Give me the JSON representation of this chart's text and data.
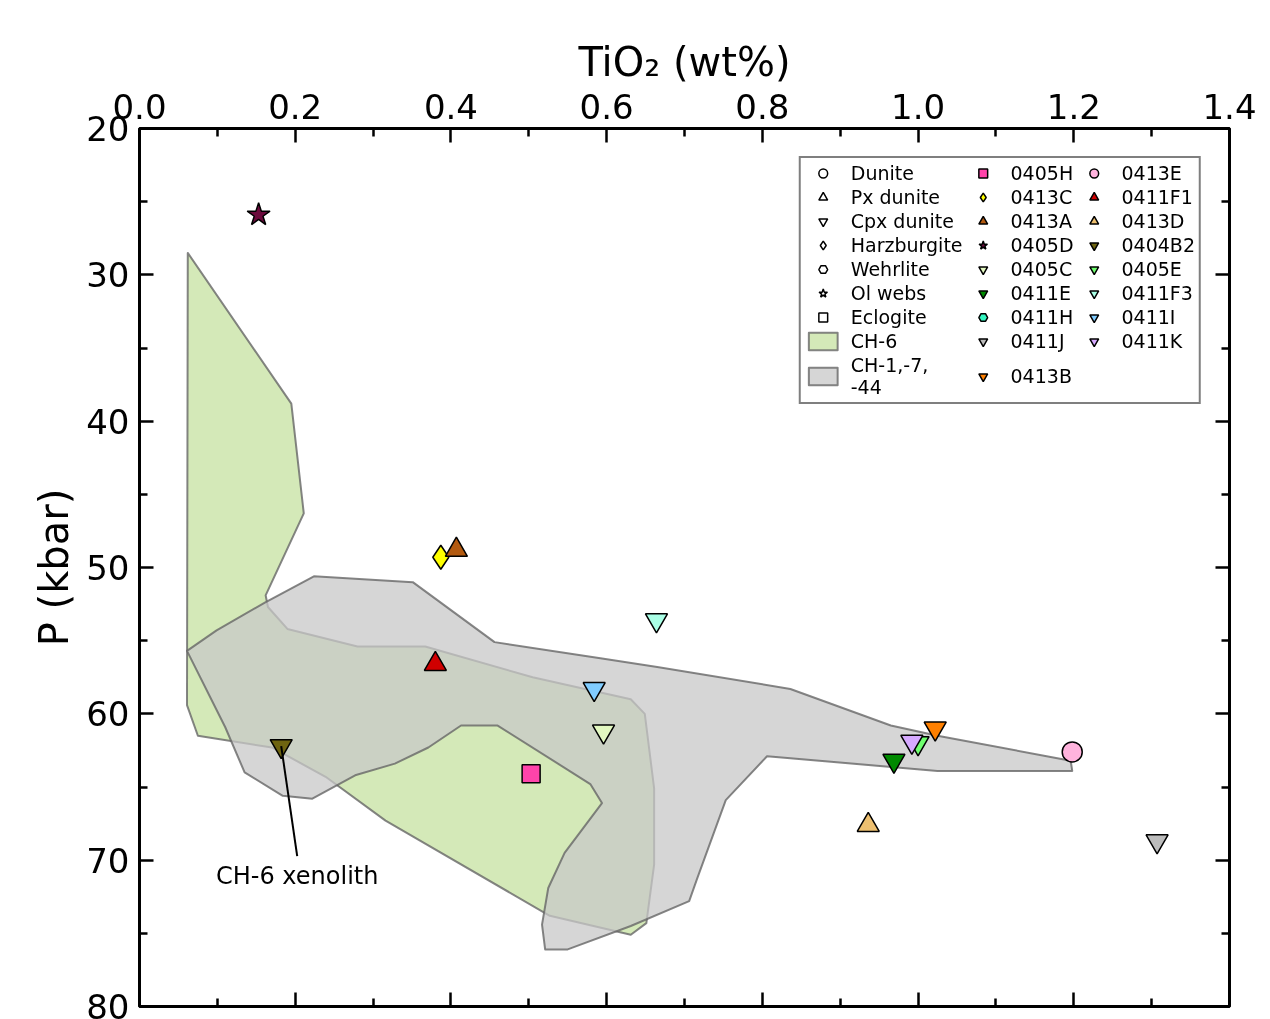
{
  "chart_data": {
    "type": "scatter",
    "xlabel": "TiO₂ (wt%)",
    "ylabel": "P (kbar)",
    "xlim": [
      0.0,
      1.4
    ],
    "ylim": [
      80,
      20
    ],
    "xticks": [
      {
        "value": 0,
        "label": "0.0"
      },
      0.2,
      0.4,
      0.6,
      0.8,
      {
        "value": 1,
        "label": "1.0"
      },
      1.2,
      1.4
    ],
    "yticks": [
      20,
      30,
      40,
      50,
      60,
      70,
      80
    ],
    "grid": false,
    "legend": "top right",
    "annotations": [
      {
        "text": "CH-6 xenolith",
        "x": 0.182,
        "y": 62.2
      }
    ],
    "series": [
      {
        "name": "Dunite",
        "marker": "circle"
      },
      {
        "name": "Px dunite",
        "marker": "triangle"
      },
      {
        "name": "Cpx dunite"
      },
      {
        "name": "Harzburgite",
        "marker": "diamond"
      },
      {
        "name": "Wehrlite",
        "marker": "hex"
      },
      {
        "name": "Ol webs",
        "marker": "star"
      },
      {
        "name": "Eclogite",
        "marker": "square"
      },
      {
        "name": "CH-6",
        "type": "area",
        "color": "#c5e2a0",
        "x": [
          0.062,
          0.195,
          0.211,
          0.162,
          0.165,
          0.19,
          0.28,
          0.367,
          0.505,
          0.631,
          0.649,
          0.661,
          0.661,
          0.651,
          0.631,
          0.527,
          0.316,
          0.239,
          0.17,
          0.075,
          0.061
        ],
        "values": [
          28.5,
          38.8,
          46.3,
          51.9,
          52.7,
          54.2,
          55.4,
          55.4,
          57.5,
          59.0,
          60.0,
          65.1,
          70.3,
          74.3,
          75.1,
          73.8,
          67.3,
          64.3,
          62.3,
          61.5,
          59.4
        ]
      },
      {
        "name": "CH-1,-7,\n-44",
        "type": "area",
        "color": "#c8c8c8",
        "x": [
          0.061,
          0.099,
          0.161,
          0.224,
          0.351,
          0.456,
          0.592,
          0.665,
          0.836,
          0.965,
          1.025,
          1.196,
          1.198,
          1.025,
          0.806,
          0.753,
          0.716,
          0.706,
          0.631,
          0.55,
          0.521,
          0.517,
          0.525,
          0.546,
          0.594,
          0.579,
          0.46,
          0.413,
          0.371,
          0.328,
          0.277,
          0.222,
          0.184,
          0.135,
          0.11
        ],
        "values": [
          55.7,
          54.3,
          52.4,
          50.6,
          51.0,
          55.1,
          56.2,
          56.8,
          58.3,
          60.8,
          61.5,
          63.2,
          63.9,
          63.9,
          62.9,
          65.9,
          71.3,
          72.8,
          74.5,
          76.1,
          76.1,
          74.4,
          71.9,
          69.5,
          66.1,
          64.8,
          60.8,
          60.8,
          62.3,
          63.4,
          64.2,
          65.8,
          65.6,
          64.0,
          60.9
        ]
      },
      {
        "name": "0405H",
        "marker": "square",
        "color": "#ff44aa",
        "x": [
          0.503
        ],
        "values": [
          64.1
        ]
      },
      {
        "name": "0413C",
        "marker": "diamond",
        "color": "#ffff00",
        "x": [
          0.387
        ],
        "values": [
          49.3
        ]
      },
      {
        "name": "0413A",
        "marker": "triangle",
        "color": "#b35a10",
        "x": [
          0.407
        ],
        "values": [
          48.8
        ]
      },
      {
        "name": "0405D",
        "marker": "star",
        "color": "#6b0a3c",
        "x": [
          0.153
        ],
        "values": [
          25.9
        ]
      },
      {
        "name": "0405C",
        "color": "#e2f8c0",
        "x": [
          0.596
        ],
        "values": [
          61.2
        ]
      },
      {
        "name": "0411E",
        "color": "#008a00",
        "x": [
          0.969
        ],
        "values": [
          63.2
        ]
      },
      {
        "name": "0411H",
        "marker": "hex",
        "color": "#33f5c0"
      },
      {
        "name": "0411J",
        "color": "#bcbcbc",
        "x": [
          1.307
        ],
        "values": [
          68.7
        ]
      },
      {
        "name": "0413B",
        "color": "#ff8000",
        "x": [
          1.022
        ],
        "values": [
          61.0
        ]
      },
      {
        "name": "0413E",
        "marker": "circle",
        "color": "#ffb3dd",
        "x": [
          1.198
        ],
        "values": [
          62.6
        ]
      },
      {
        "name": "0411F1",
        "marker": "triangle",
        "color": "#d00000",
        "x": [
          0.38
        ],
        "values": [
          56.6
        ]
      },
      {
        "name": "0413D",
        "marker": "triangle",
        "color": "#eec070",
        "x": [
          0.936
        ],
        "values": [
          67.6
        ]
      },
      {
        "name": "0404B2",
        "color": "#6e6410",
        "x": [
          0.182
        ],
        "values": [
          62.2
        ]
      },
      {
        "name": "0405E",
        "color": "#70ff70",
        "x": [
          1.0
        ],
        "values": [
          62.0
        ]
      },
      {
        "name": "0411F3",
        "color": "#aaffe6",
        "x": [
          0.664
        ],
        "values": [
          53.6
        ]
      },
      {
        "name": "0411I",
        "color": "#80ccff",
        "x": [
          0.584
        ],
        "values": [
          58.3
        ]
      },
      {
        "name": "0411K",
        "color": "#d6aaff",
        "x": [
          0.992
        ],
        "values": [
          61.9
        ]
      }
    ]
  }
}
